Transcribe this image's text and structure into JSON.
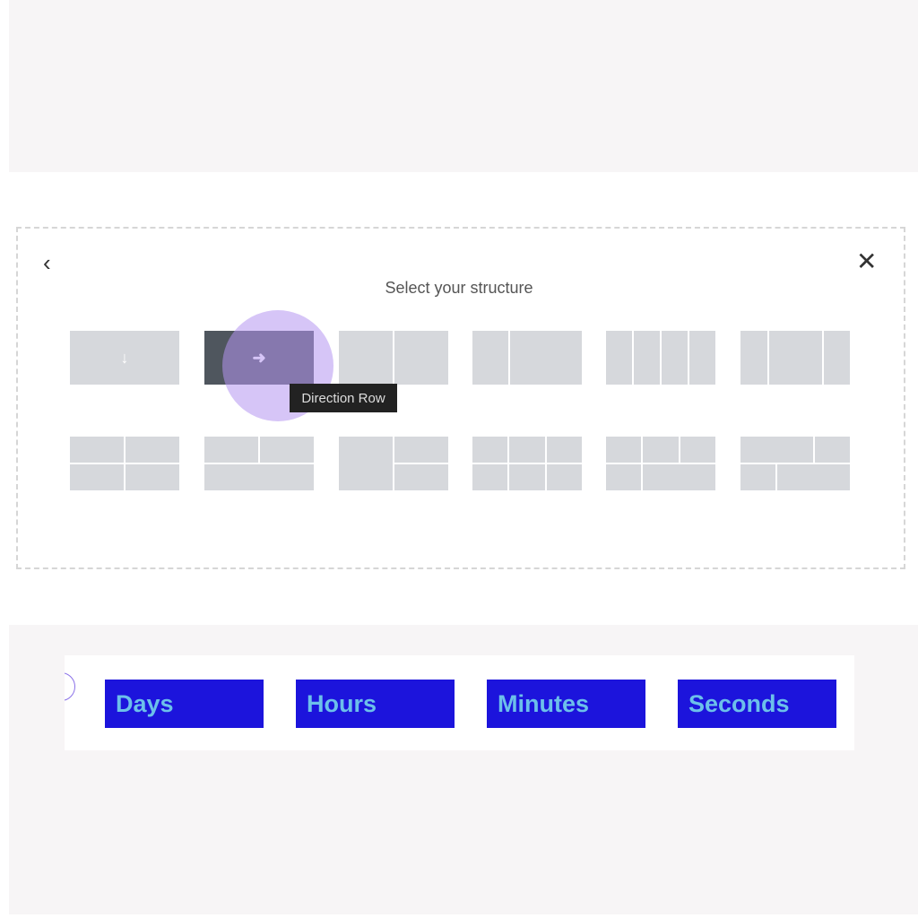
{
  "modal": {
    "title": "Select your structure",
    "back_icon": "chevron-left-icon",
    "close_icon": "close-icon",
    "tooltip": "Direction Row",
    "row_down_arrow": "↓",
    "row_right_arrow": "➜",
    "back_glyph": "‹",
    "close_glyph": "✕"
  },
  "countdown": {
    "labels": [
      "Days",
      "Hours",
      "Minutes",
      "Seconds"
    ],
    "box_color": "#1c14dc",
    "text_color": "#6cc0ea"
  },
  "colors": {
    "selected_tile": "#4f565e",
    "tile": "#d6d8dc",
    "highlight": "#b496f0"
  }
}
